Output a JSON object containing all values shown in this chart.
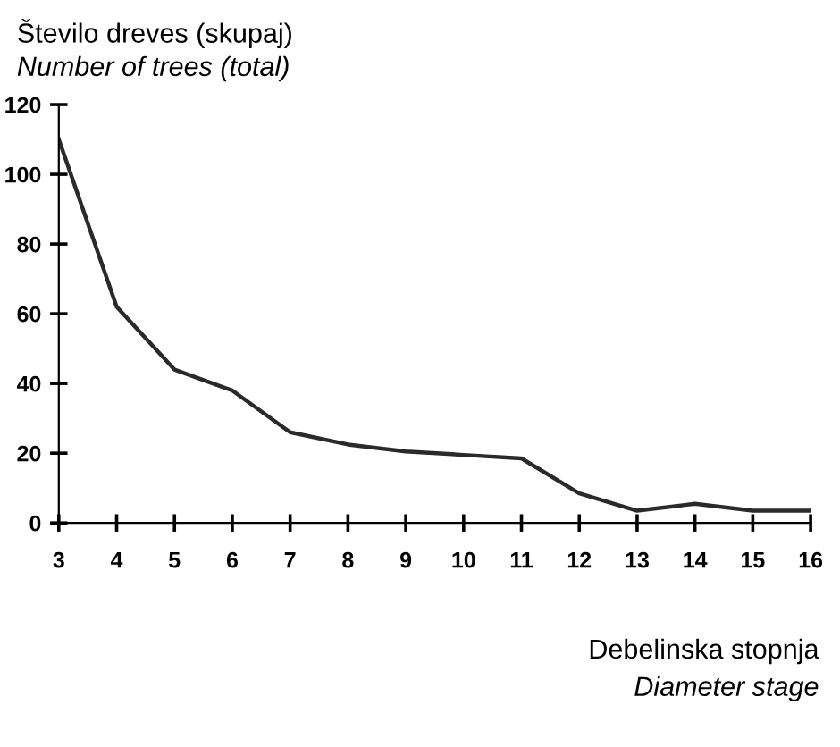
{
  "chart_data": {
    "type": "line",
    "ylabel": "Število dreves (skupaj)\nNumber of trees (total)",
    "xlabel": "Debelinska stopnja\nDiameter stage",
    "x": [
      3,
      4,
      5,
      6,
      7,
      8,
      9,
      10,
      11,
      12,
      13,
      14,
      15,
      16
    ],
    "series": [
      {
        "color": "#2a2a2a",
        "values": [
          110,
          62,
          44,
          38,
          26,
          22.5,
          20.5,
          19.5,
          18.5,
          8.5,
          3.5,
          5.5,
          3.5,
          3.5
        ]
      }
    ],
    "xlim": [
      3,
      16
    ],
    "ylim": [
      0,
      120
    ],
    "xticks": [
      3,
      4,
      5,
      6,
      7,
      8,
      9,
      10,
      11,
      12,
      13,
      14,
      15,
      16
    ],
    "yticks": [
      0,
      20,
      40,
      60,
      80,
      100,
      120
    ],
    "grid": false,
    "marker": "none",
    "line_style": "solid"
  }
}
